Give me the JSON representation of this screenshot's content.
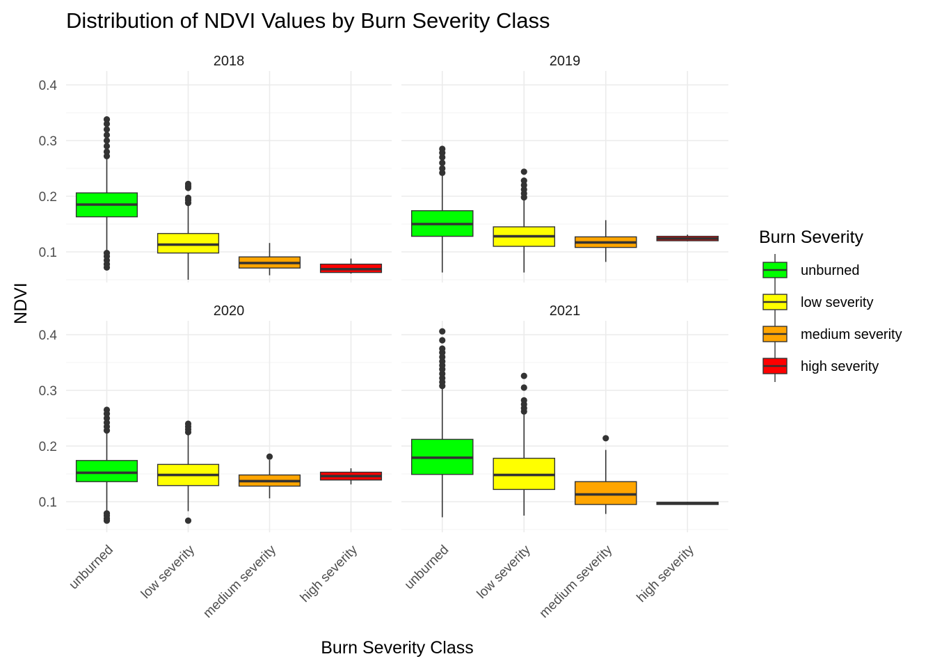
{
  "chart_data": {
    "type": "boxplot",
    "title": "Distribution of NDVI Values by Burn Severity Class",
    "xlabel": "Burn Severity Class",
    "ylabel": "NDVI",
    "ylim": [
      0.045,
      0.425
    ],
    "yticks": [
      0.1,
      0.2,
      0.3,
      0.4
    ],
    "ytick_labels": [
      "0.1",
      "0.2",
      "0.3",
      "0.4"
    ],
    "categories": [
      "unburned",
      "low severity",
      "medium severity",
      "high severity"
    ],
    "colors": {
      "unburned": "#00ff00",
      "low severity": "#ffff00",
      "medium severity": "#ffa500",
      "high severity": "#ff0000"
    },
    "legend": {
      "title": "Burn Severity",
      "position": "right",
      "items": [
        "unburned",
        "low severity",
        "medium severity",
        "high severity"
      ]
    },
    "grid": true,
    "facets": [
      {
        "label": "2018",
        "boxes": [
          {
            "category": "unburned",
            "lower_whisker": 0.08,
            "q1": 0.163,
            "median": 0.185,
            "q3": 0.206,
            "upper_whisker": 0.27,
            "outliers": [
              0.072,
              0.078,
              0.085,
              0.092,
              0.098,
              0.272,
              0.28,
              0.29,
              0.3,
              0.31,
              0.32,
              0.33,
              0.338
            ]
          },
          {
            "category": "low severity",
            "lower_whisker": 0.05,
            "q1": 0.098,
            "median": 0.113,
            "q3": 0.133,
            "upper_whisker": 0.185,
            "outliers": [
              0.188,
              0.193,
              0.197,
              0.215,
              0.218,
              0.222
            ]
          },
          {
            "category": "medium severity",
            "lower_whisker": 0.058,
            "q1": 0.071,
            "median": 0.08,
            "q3": 0.091,
            "upper_whisker": 0.116,
            "outliers": []
          },
          {
            "category": "high severity",
            "lower_whisker": 0.061,
            "q1": 0.063,
            "median": 0.069,
            "q3": 0.078,
            "upper_whisker": 0.088,
            "outliers": []
          }
        ]
      },
      {
        "label": "2019",
        "boxes": [
          {
            "category": "unburned",
            "lower_whisker": 0.063,
            "q1": 0.128,
            "median": 0.15,
            "q3": 0.174,
            "upper_whisker": 0.24,
            "outliers": [
              0.242,
              0.25,
              0.26,
              0.27,
              0.278,
              0.285
            ]
          },
          {
            "category": "low severity",
            "lower_whisker": 0.063,
            "q1": 0.11,
            "median": 0.128,
            "q3": 0.145,
            "upper_whisker": 0.196,
            "outliers": [
              0.198,
              0.205,
              0.212,
              0.22,
              0.228,
              0.244
            ]
          },
          {
            "category": "medium severity",
            "lower_whisker": 0.082,
            "q1": 0.108,
            "median": 0.117,
            "q3": 0.127,
            "upper_whisker": 0.157,
            "outliers": []
          },
          {
            "category": "high severity",
            "lower_whisker": 0.119,
            "q1": 0.12,
            "median": 0.124,
            "q3": 0.128,
            "upper_whisker": 0.131,
            "outliers": []
          }
        ]
      },
      {
        "label": "2020",
        "boxes": [
          {
            "category": "unburned",
            "lower_whisker": 0.083,
            "q1": 0.136,
            "median": 0.152,
            "q3": 0.174,
            "upper_whisker": 0.225,
            "outliers": [
              0.066,
              0.07,
              0.075,
              0.079,
              0.228,
              0.235,
              0.242,
              0.25,
              0.258,
              0.265
            ]
          },
          {
            "category": "low severity",
            "lower_whisker": 0.083,
            "q1": 0.129,
            "median": 0.148,
            "q3": 0.167,
            "upper_whisker": 0.222,
            "outliers": [
              0.066,
              0.225,
              0.23,
              0.235,
              0.24
            ]
          },
          {
            "category": "medium severity",
            "lower_whisker": 0.106,
            "q1": 0.128,
            "median": 0.137,
            "q3": 0.148,
            "upper_whisker": 0.175,
            "outliers": [
              0.181
            ]
          },
          {
            "category": "high severity",
            "lower_whisker": 0.131,
            "q1": 0.139,
            "median": 0.146,
            "q3": 0.153,
            "upper_whisker": 0.16,
            "outliers": []
          }
        ]
      },
      {
        "label": "2021",
        "boxes": [
          {
            "category": "unburned",
            "lower_whisker": 0.072,
            "q1": 0.149,
            "median": 0.179,
            "q3": 0.212,
            "upper_whisker": 0.305,
            "outliers": [
              0.308,
              0.315,
              0.322,
              0.33,
              0.338,
              0.345,
              0.352,
              0.36,
              0.368,
              0.375,
              0.39,
              0.406
            ]
          },
          {
            "category": "low severity",
            "lower_whisker": 0.075,
            "q1": 0.122,
            "median": 0.148,
            "q3": 0.178,
            "upper_whisker": 0.258,
            "outliers": [
              0.262,
              0.268,
              0.275,
              0.282,
              0.305,
              0.326
            ]
          },
          {
            "category": "medium severity",
            "lower_whisker": 0.078,
            "q1": 0.095,
            "median": 0.113,
            "q3": 0.136,
            "upper_whisker": 0.193,
            "outliers": [
              0.214
            ]
          },
          {
            "category": "high severity",
            "lower_whisker": 0.095,
            "q1": 0.095,
            "median": 0.097,
            "q3": 0.099,
            "upper_whisker": 0.1,
            "outliers": []
          }
        ]
      }
    ]
  }
}
